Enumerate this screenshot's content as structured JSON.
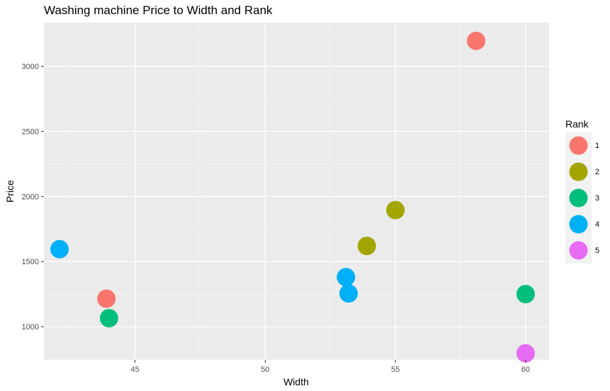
{
  "chart_data": {
    "type": "scatter",
    "title": "Washing machine Price to Width and Rank",
    "xlabel": "Width",
    "ylabel": "Price",
    "xlim": [
      41.5,
      60.9
    ],
    "ylim": [
      745,
      3335
    ],
    "x_ticks": [
      45,
      50,
      55,
      60
    ],
    "y_ticks": [
      1000,
      1500,
      2000,
      2500,
      3000
    ],
    "grid": true,
    "legend": {
      "title": "Rank",
      "placement": "right",
      "entries": [
        {
          "label": "1",
          "color": "#F8766D"
        },
        {
          "label": "2",
          "color": "#A3A500"
        },
        {
          "label": "3",
          "color": "#00BF7D"
        },
        {
          "label": "4",
          "color": "#00B0F6"
        },
        {
          "label": "5",
          "color": "#E76BF3"
        }
      ]
    },
    "points": [
      {
        "x": 58.1,
        "y": 3195,
        "rank": "1"
      },
      {
        "x": 43.9,
        "y": 1215,
        "rank": "1"
      },
      {
        "x": 55.0,
        "y": 1895,
        "rank": "2"
      },
      {
        "x": 53.9,
        "y": 1620,
        "rank": "2"
      },
      {
        "x": 44.0,
        "y": 1065,
        "rank": "3"
      },
      {
        "x": 60.0,
        "y": 1250,
        "rank": "3"
      },
      {
        "x": 42.1,
        "y": 1595,
        "rank": "4"
      },
      {
        "x": 53.1,
        "y": 1380,
        "rank": "4"
      },
      {
        "x": 53.2,
        "y": 1255,
        "rank": "4"
      },
      {
        "x": 60.0,
        "y": 795,
        "rank": "5"
      }
    ]
  }
}
